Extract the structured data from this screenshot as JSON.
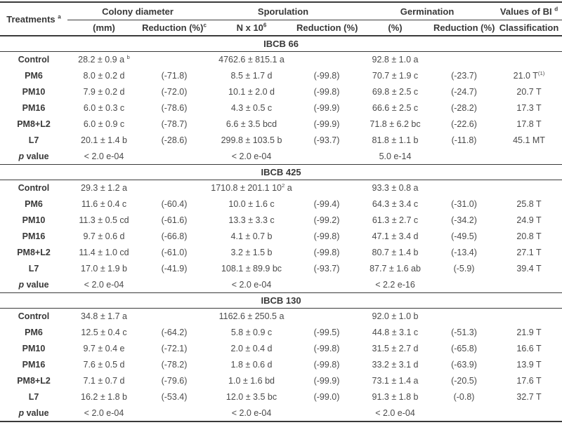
{
  "colors": {
    "background": "#ffffff",
    "text_bold": "#383838",
    "text_data": "#4a4a4a",
    "rule": "#3a3a3a"
  },
  "table": {
    "treatments_header": "Treatments ^{a}",
    "groups": [
      {
        "label": "Colony diameter",
        "subs": [
          "(mm)",
          "Reduction (%)^{c}"
        ]
      },
      {
        "label": "Sporulation",
        "subs": [
          "N x 10^{6}",
          "Reduction (%)"
        ]
      },
      {
        "label": "Germination",
        "subs": [
          "(%)",
          "Reduction (%)"
        ]
      },
      {
        "label": "Values of BI ^{d}",
        "subs": [
          "Classification"
        ]
      }
    ],
    "sections": [
      {
        "title": "IBCB 66",
        "rows": [
          {
            "label": "Control",
            "cells": [
              "28.2 ± 0.9 a ^{b}",
              "",
              "4762.6 ± 815.1 a",
              "",
              "92.8 ± 1.0 a",
              "",
              ""
            ]
          },
          {
            "label": "PM6",
            "cells": [
              "8.0 ± 0.2 d",
              "(-71.8)",
              "8.5 ± 1.7 d",
              "(-99.8)",
              "70.7 ± 1.9 c",
              "(-23.7)",
              "21.0 T^{(1)}"
            ]
          },
          {
            "label": "PM10",
            "cells": [
              "7.9 ± 0.2 d",
              "(-72.0)",
              "10.1 ± 2.0 d",
              "(-99.8)",
              "69.8 ± 2.5 c",
              "(-24.7)",
              "20.7 T"
            ]
          },
          {
            "label": "PM16",
            "cells": [
              "6.0 ± 0.3 c",
              "(-78.6)",
              "4.3 ± 0.5 c",
              "(-99.9)",
              "66.6 ± 2.5 c",
              "(-28.2)",
              "17.3 T"
            ]
          },
          {
            "label": "PM8+L2",
            "cells": [
              "6.0 ± 0.9 c",
              "(-78.7)",
              "6.6 ± 3.5 bcd",
              "(-99.9)",
              "71.8 ± 6.2 bc",
              "(-22.6)",
              "17.8 T"
            ]
          },
          {
            "label": "L7",
            "cells": [
              "20.1 ± 1.4 b",
              "(-28.6)",
              "299.8 ± 103.5 b",
              "(-93.7)",
              "81.8 ± 1.1 b",
              "(-11.8)",
              "45.1 MT"
            ]
          },
          {
            "label": "~{p} value",
            "pvalue": true,
            "cells": [
              "< 2.0 e-04",
              "",
              "< 2.0 e-04",
              "",
              "5.0 e-14",
              "",
              ""
            ]
          }
        ]
      },
      {
        "title": "IBCB 425",
        "rows": [
          {
            "label": "Control",
            "cells": [
              "29.3 ± 1.2 a",
              "",
              "1710.8 ± 201.1 10^{2} a",
              "",
              "93.3 ± 0.8 a",
              "",
              ""
            ]
          },
          {
            "label": "PM6",
            "cells": [
              "11.6 ± 0.4 c",
              "(-60.4)",
              "10.0 ± 1.6 c",
              "(-99.4)",
              "64.3 ± 3.4 c",
              "(-31.0)",
              "25.8 T"
            ]
          },
          {
            "label": "PM10",
            "cells": [
              "11.3 ± 0.5 cd",
              "(-61.6)",
              "13.3 ± 3.3 c",
              "(-99.2)",
              "61.3 ± 2.7 c",
              "(-34.2)",
              "24.9 T"
            ]
          },
          {
            "label": "PM16",
            "cells": [
              "9.7 ± 0.6 d",
              "(-66.8)",
              "4.1 ± 0.7 b",
              "(-99.8)",
              "47.1 ± 3.4 d",
              "(-49.5)",
              "20.8 T"
            ]
          },
          {
            "label": "PM8+L2",
            "cells": [
              "11.4 ± 1.0 cd",
              "(-61.0)",
              "3.2 ± 1.5 b",
              "(-99.8)",
              "80.7 ± 1.4 b",
              "(-13.4)",
              "27.1 T"
            ]
          },
          {
            "label": "L7",
            "cells": [
              "17.0 ± 1.9 b",
              "(-41.9)",
              "108.1 ± 89.9 bc",
              "(-93.7)",
              "87.7 ± 1.6 ab",
              "(-5.9)",
              "39.4 T"
            ]
          },
          {
            "label": "~{p} value",
            "pvalue": true,
            "cells": [
              "< 2.0 e-04",
              "",
              "< 2.0 e-04",
              "",
              "< 2.2 e-16",
              "",
              ""
            ]
          }
        ]
      },
      {
        "title": "IBCB 130",
        "rows": [
          {
            "label": "Control",
            "cells": [
              "34.8 ± 1.7 a",
              "",
              "1162.6 ± 250.5 a",
              "",
              "92.0 ± 1.0 b",
              "",
              ""
            ]
          },
          {
            "label": "PM6",
            "cells": [
              "12.5 ± 0.4 c",
              "(-64.2)",
              "5.8 ± 0.9 c",
              "(-99.5)",
              "44.8 ± 3.1 c",
              "(-51.3)",
              "21.9 T"
            ]
          },
          {
            "label": "PM10",
            "cells": [
              "9.7 ± 0.4 e",
              "(-72.1)",
              "2.0 ± 0.4 d",
              "(-99.8)",
              "31.5 ± 2.7 d",
              "(-65.8)",
              "16.6 T"
            ]
          },
          {
            "label": "PM16",
            "cells": [
              "7.6 ± 0.5 d",
              "(-78.2)",
              "1.8 ± 0.6 d",
              "(-99.8)",
              "33.2 ± 3.1 d",
              "(-63.9)",
              "13.9 T"
            ]
          },
          {
            "label": "PM8+L2",
            "cells": [
              "7.1 ± 0.7 d",
              "(-79.6)",
              "1.0 ± 1.6 bd",
              "(-99.9)",
              "73.1 ± 1.4 a",
              "(-20.5)",
              "17.6 T"
            ]
          },
          {
            "label": "L7",
            "cells": [
              "16.2 ± 1.8 b",
              "(-53.4)",
              "12.0 ± 3.5 bc",
              "(-99.0)",
              "91.3 ± 1.8 b",
              "(-0.8)",
              "32.7 T"
            ]
          },
          {
            "label": "~{p} value",
            "pvalue": true,
            "cells": [
              "< 2.0 e-04",
              "",
              "< 2.0 e-04",
              "",
              "< 2.0 e-04",
              "",
              ""
            ]
          }
        ]
      }
    ]
  }
}
